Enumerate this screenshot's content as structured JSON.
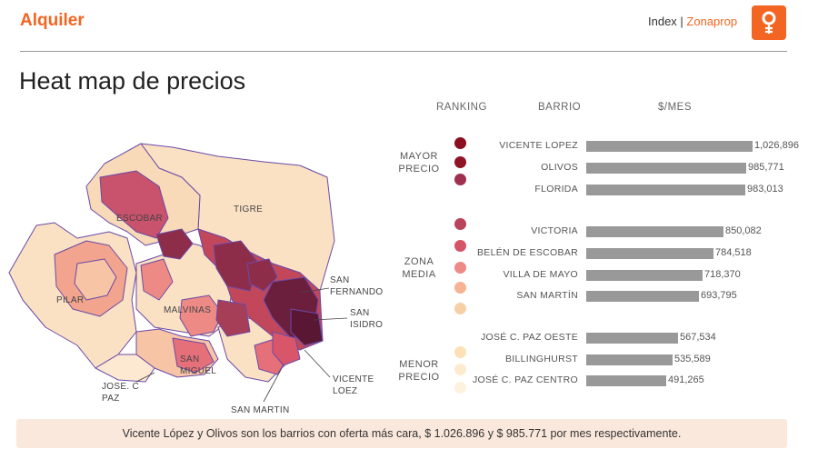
{
  "header": {
    "brand": "Alquiler",
    "index_prefix": "Index | ",
    "index_brand": "Zonaprop"
  },
  "page_title": "Heat map de precios",
  "columns": {
    "ranking": "RANKING",
    "barrio": "BARRIO",
    "price": "$/MES"
  },
  "groups": [
    {
      "line1": "MAYOR",
      "line2": "PRECIO"
    },
    {
      "line1": "ZONA",
      "line2": "MEDIA"
    },
    {
      "line1": "MENOR",
      "line2": "PRECIO"
    }
  ],
  "rows": [
    {
      "name": "VICENTE LOPEZ",
      "value": 1026896,
      "value_label": "1,026,896",
      "color": "#8b1a2b"
    },
    {
      "name": "OLIVOS",
      "value": 985771,
      "value_label": "985,771",
      "color": "#9a1c2c"
    },
    {
      "name": "FLORIDA",
      "value": 983013,
      "value_label": "983,013",
      "color": "#a53a55"
    },
    {
      "name": "VICTORIA",
      "value": 850082,
      "value_label": "850,082",
      "color": "#c2475a"
    },
    {
      "name": "BELÉN DE ESCOBAR",
      "value": 784518,
      "value_label": "784,518",
      "color": "#d9566a"
    },
    {
      "name": "VILLA DE MAYO",
      "value": 718370,
      "value_label": "718,370",
      "color": "#ee8a86"
    },
    {
      "name": "SAN MARTÍN",
      "value": 693795,
      "value_label": "693,795",
      "color": "#f6b29c"
    },
    {
      "name": "JOSÉ C. PAZ OESTE",
      "value": 567534,
      "value_label": "567,534",
      "color": "#f8d3b0"
    },
    {
      "name": "BILLINGHURST",
      "value": 535589,
      "value_label": "535,589",
      "color": "#fbe5c6"
    },
    {
      "name": "JOSÉ C. PAZ CENTRO",
      "value": 491265,
      "value_label": "491,265",
      "color": "#fdf0d9"
    }
  ],
  "map_labels": {
    "tigre": "TIGRE",
    "escobar": "ESCOBAR",
    "pilar": "PILAR",
    "malvinas": "MALVINAS",
    "san_miguel_1": "SAN",
    "san_miguel_2": "MIGUEL",
    "jose_c_paz_1": "JOSE. C",
    "jose_c_paz_2": "PAZ",
    "san_martin": "SAN MARTIN",
    "vicente_lopez_1": "VICENTE",
    "vicente_lopez_2": "LOEZ",
    "san_isidro_1": "SAN",
    "san_isidro_2": "ISIDRO",
    "san_fernando_1": "SAN",
    "san_fernando_2": "FERNANDO"
  },
  "footer": "Vicente López y Olivos son los barrios con oferta más cara, $ 1.026.896 y $ 985.771 por mes respectivamente."
}
